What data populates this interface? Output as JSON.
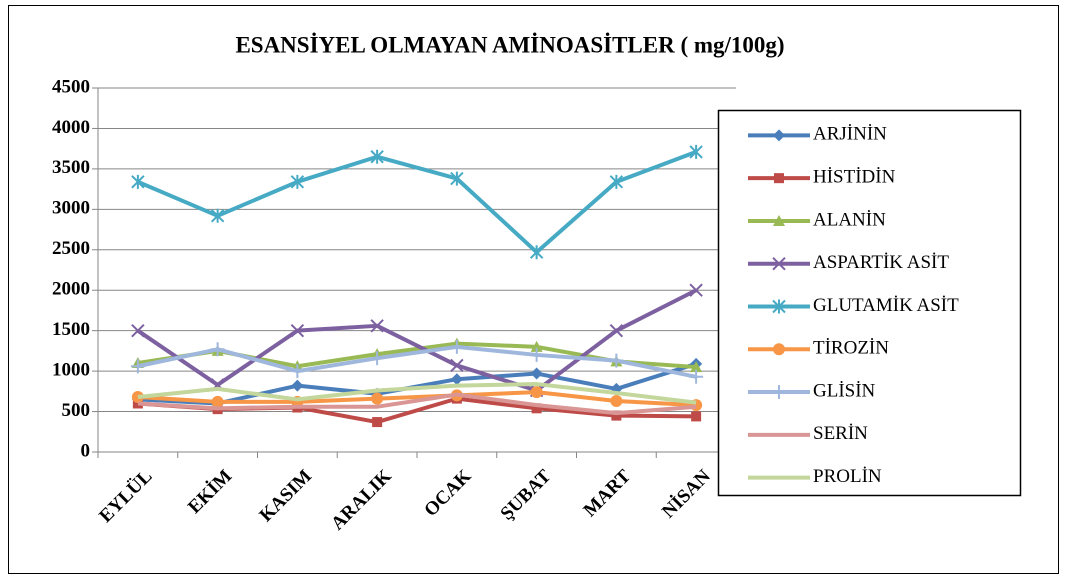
{
  "chart_data": {
    "type": "line",
    "title": "ESANSİYEL OLMAYAN AMİNOASİTLER  ( mg/100g)",
    "categories": [
      "EYLÜL",
      "EKİM",
      "KASIM",
      "ARALIK",
      "OCAK",
      "ŞUBAT",
      "MART",
      "NİSAN"
    ],
    "series": [
      {
        "name": "ARJİNİN",
        "color": "#4a7ebb",
        "marker": "diamond",
        "values": [
          650,
          600,
          820,
          720,
          900,
          970,
          780,
          1090
        ]
      },
      {
        "name": "HİSTİDİN",
        "color": "#be4b48",
        "marker": "square",
        "values": [
          600,
          530,
          550,
          370,
          660,
          540,
          450,
          440
        ]
      },
      {
        "name": "ALANİN",
        "color": "#98b954",
        "marker": "triangle",
        "values": [
          1100,
          1250,
          1060,
          1210,
          1340,
          1300,
          1120,
          1050
        ]
      },
      {
        "name": "ASPARTİK ASİT",
        "color": "#7d60a0",
        "marker": "x",
        "values": [
          1500,
          830,
          1500,
          1560,
          1070,
          760,
          1500,
          2000
        ]
      },
      {
        "name": "GLUTAMİK ASİT",
        "color": "#46aac5",
        "marker": "star",
        "values": [
          3340,
          2920,
          3340,
          3650,
          3380,
          2470,
          3340,
          3710
        ]
      },
      {
        "name": "TİROZİN",
        "color": "#f79646",
        "marker": "circle",
        "values": [
          680,
          620,
          620,
          660,
          700,
          740,
          630,
          580
        ]
      },
      {
        "name": "GLİSİN",
        "color": "#9fb7dc",
        "marker": "plus",
        "values": [
          1060,
          1270,
          1000,
          1160,
          1300,
          1200,
          1130,
          930
        ]
      },
      {
        "name": "SERİN",
        "color": "#d99694",
        "marker": "none",
        "values": [
          600,
          540,
          560,
          560,
          710,
          580,
          480,
          560
        ]
      },
      {
        "name": "PROLİN",
        "color": "#c3d69b",
        "marker": "none",
        "values": [
          680,
          780,
          650,
          760,
          820,
          840,
          730,
          610
        ]
      }
    ],
    "ylim": [
      0,
      4500
    ],
    "yticks": [
      0,
      500,
      1000,
      1500,
      2000,
      2500,
      3000,
      3500,
      4000,
      4500
    ],
    "grid": true,
    "legend": "right"
  }
}
